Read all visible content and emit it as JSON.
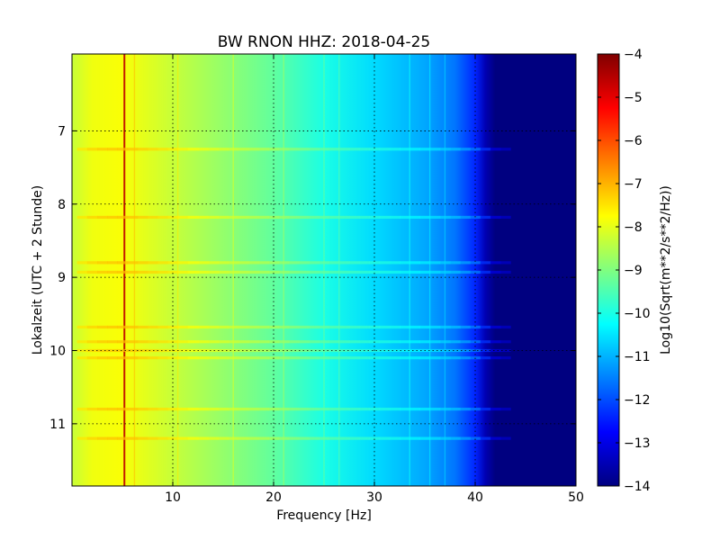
{
  "chart_data": {
    "type": "heatmap",
    "title": "BW RNON HHZ: 2018-04-25",
    "xlabel": "Frequency [Hz]",
    "ylabel": "Lokalzeit (UTC + 2 Stunde)",
    "xlim": [
      0,
      50
    ],
    "ylim": [
      5.95,
      11.85
    ],
    "y_inverted": true,
    "xticks": [
      10,
      20,
      30,
      40,
      50
    ],
    "yticks": [
      7,
      8,
      9,
      10,
      11
    ],
    "grid": true,
    "colormap": "jet",
    "colorbar": {
      "label": "Log10(Sqrt(m**2/s**2/Hz))",
      "vmin": -14,
      "vmax": -4,
      "ticks": [
        -4,
        -5,
        -6,
        -7,
        -8,
        -9,
        -10,
        -11,
        -12,
        -13,
        -14
      ]
    },
    "spectrum_profile": {
      "frequency_hz": [
        0,
        2,
        5,
        10,
        15,
        20,
        25,
        30,
        35,
        38,
        40,
        41,
        42,
        50
      ],
      "log10_amplitude": [
        -8.3,
        -7.9,
        -7.8,
        -8.3,
        -8.8,
        -9.3,
        -10.0,
        -10.6,
        -11.1,
        -11.6,
        -12.4,
        -13.5,
        -14.0,
        -14.0
      ]
    },
    "spectral_lines_hz": [
      5.2,
      6.2,
      10.5,
      16,
      21,
      25,
      26.5,
      33.5,
      35.5,
      37
    ],
    "strong_lines_hz": [
      5.2
    ],
    "broadband_events_hour": [
      7.25,
      8.18,
      8.8,
      8.93,
      9.68,
      9.88,
      10.0,
      10.1,
      10.8,
      11.2
    ]
  }
}
